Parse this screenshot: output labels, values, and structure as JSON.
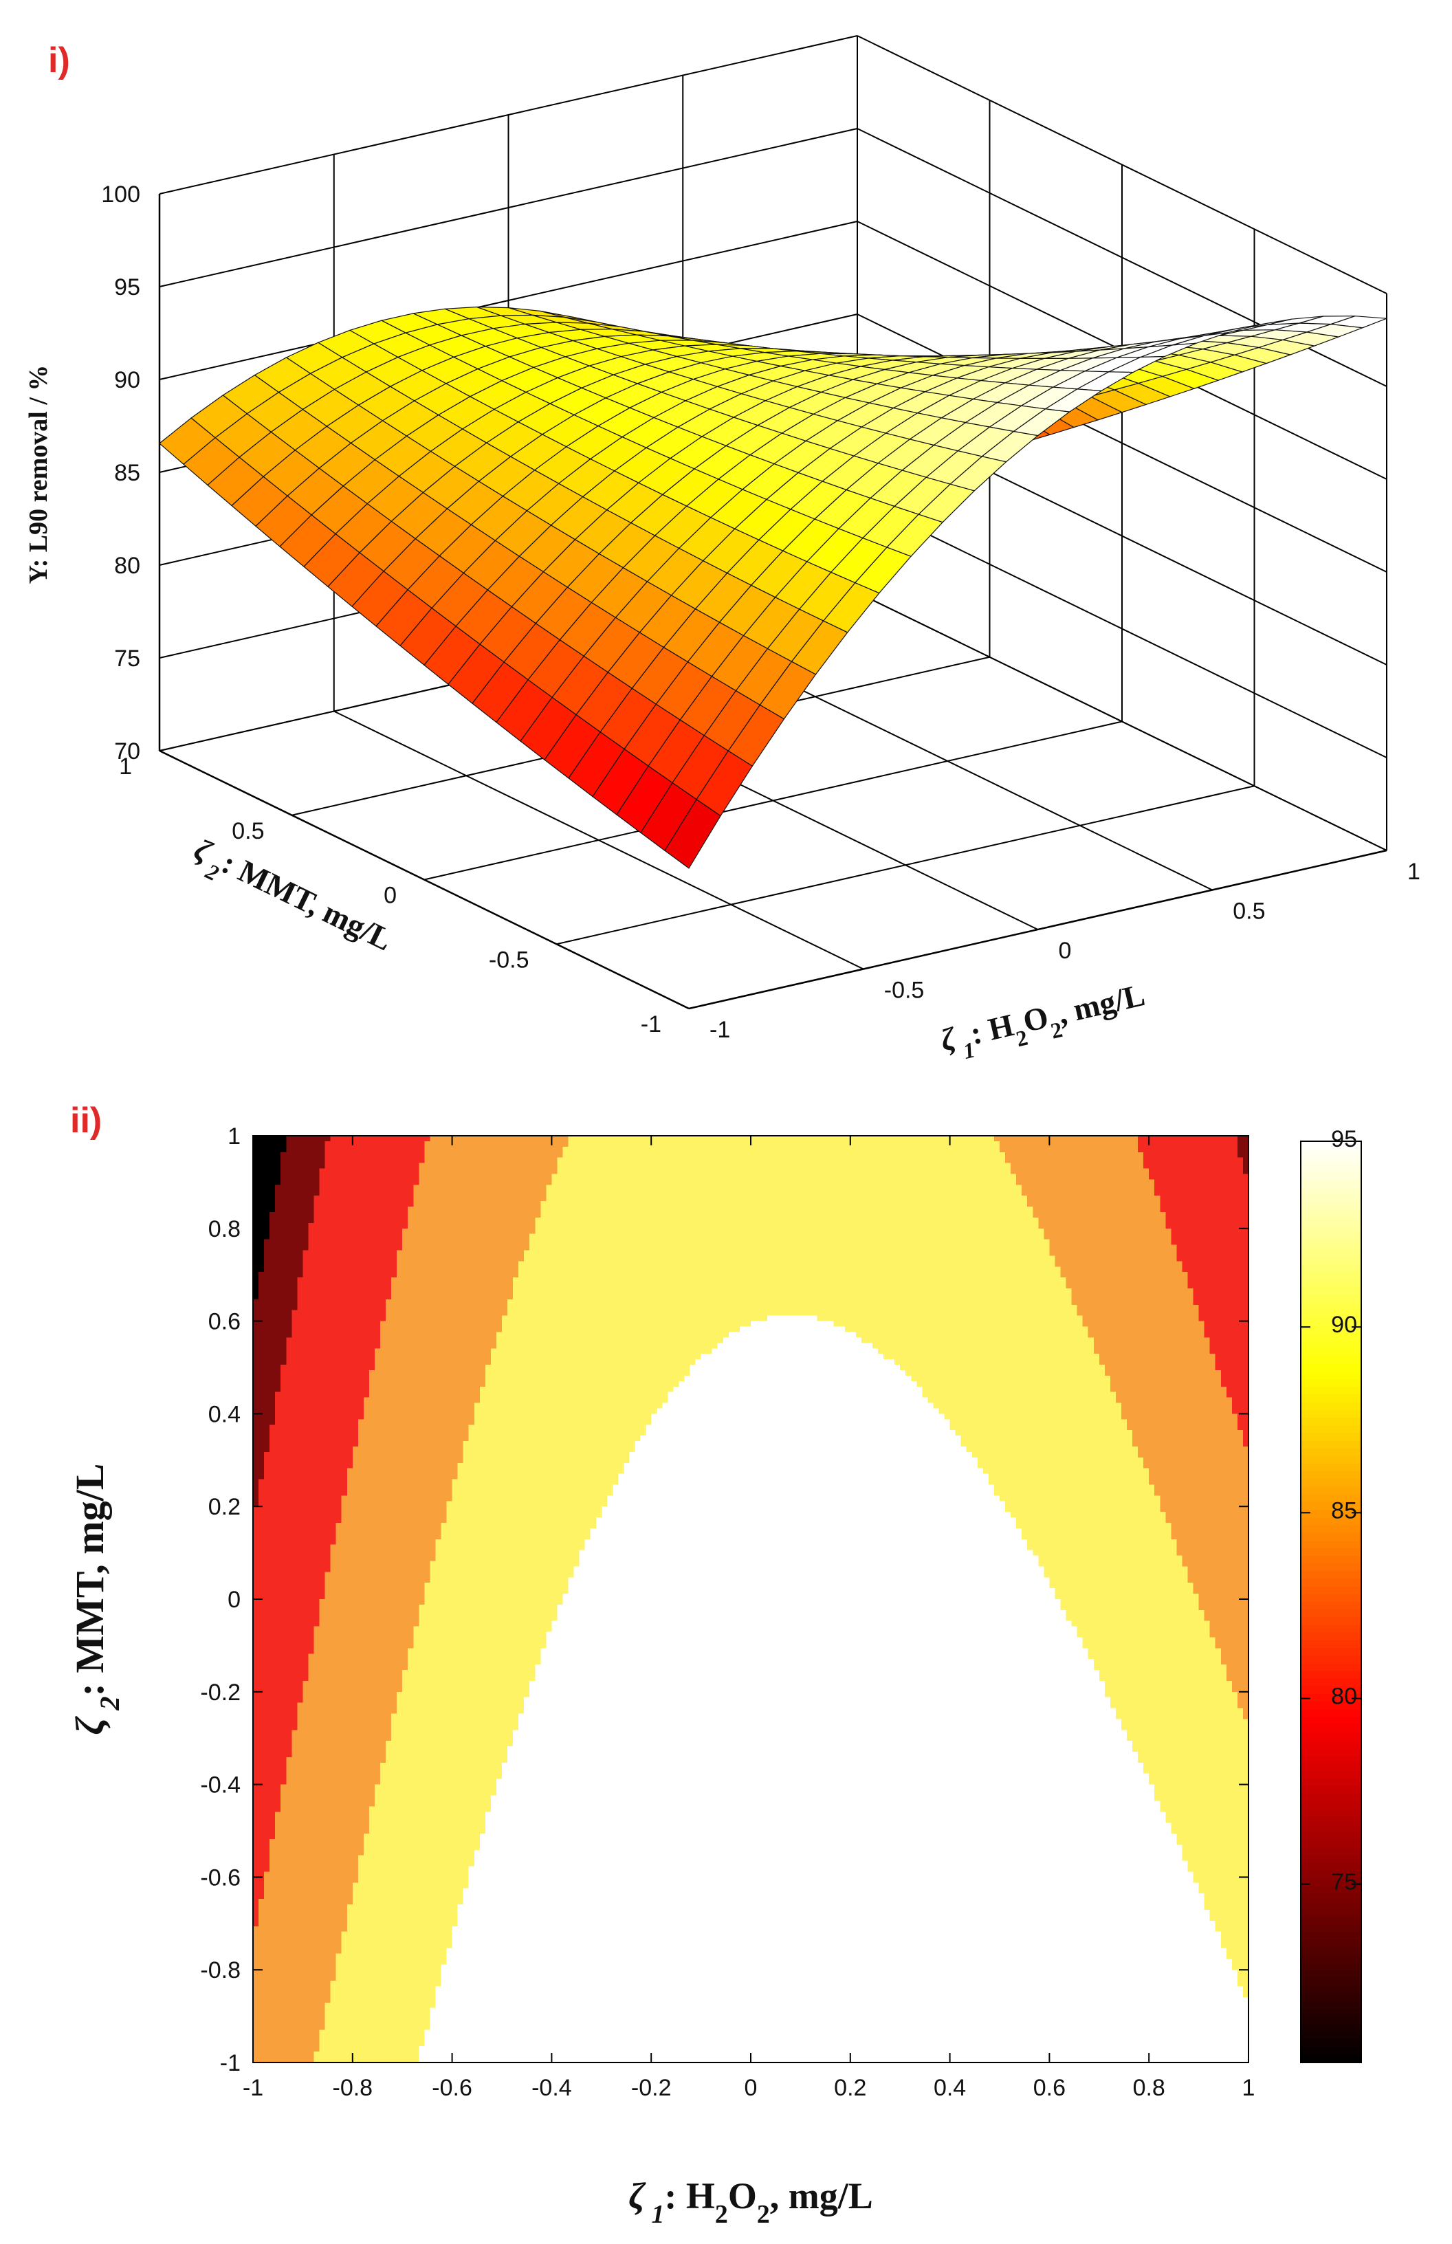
{
  "colors": {
    "panel_label": "#e02a2a",
    "axis": "#000000",
    "grid": "#222222"
  },
  "panels": [
    {
      "label": "i)"
    },
    {
      "label": "ii)"
    }
  ],
  "chart_data": [
    {
      "type": "surface3d",
      "panel": "i)",
      "zlabel": "Y: L90 removal / %",
      "xlabel_prefix": "ζ",
      "xlabel_sub": "1",
      "xlabel_main": ": H",
      "xlabel_sub2": "2",
      "xlabel_mid": "O",
      "xlabel_sub3": "2",
      "xlabel_end": ", mg/L",
      "ylabel_prefix": "ζ",
      "ylabel_sub": "2",
      "ylabel_main": ": MMT, mg/L",
      "x_ticks": [
        "-1",
        "-0.5",
        "0",
        "0.5",
        "1"
      ],
      "y_ticks": [
        "-1",
        "-0.5",
        "0",
        "0.5",
        "1"
      ],
      "z_ticks": [
        "70",
        "75",
        "80",
        "85",
        "90",
        "95",
        "100"
      ],
      "xlim": [
        -1,
        1
      ],
      "ylim": [
        -1,
        1
      ],
      "zlim": [
        70,
        100
      ],
      "model": "Y = 92.8 - 8.5*(z1-0.15)^2 - 3.5*z2 - 8*z1*z2 + 0.5*z2^2",
      "colormap": "hot",
      "color_range": [
        70,
        95
      ]
    },
    {
      "type": "contour",
      "panel": "ii)",
      "xlabel_prefix": "ζ",
      "xlabel_sub": "1",
      "xlabel_main": ": H",
      "xlabel_sub2": "2",
      "xlabel_mid": "O",
      "xlabel_sub3": "2",
      "xlabel_end": ", mg/L",
      "ylabel_prefix": "ζ",
      "ylabel_sub": "2",
      "ylabel_main": ": MMT, mg/L",
      "x_ticks": [
        "-1",
        "-0.8",
        "-0.6",
        "-0.4",
        "-0.2",
        "0",
        "0.2",
        "0.4",
        "0.6",
        "0.8",
        "1"
      ],
      "y_ticks": [
        "-1",
        "-0.8",
        "-0.6",
        "-0.4",
        "-0.2",
        "0",
        "0.2",
        "0.4",
        "0.6",
        "0.8",
        "1"
      ],
      "xlim": [
        -1,
        1
      ],
      "ylim": [
        -1,
        1
      ],
      "levels": [
        70,
        75,
        80,
        85,
        90,
        95
      ],
      "level_colors": [
        "#000000",
        "#7d0b0b",
        "#f42a22",
        "#f7a03c",
        "#fdf364",
        "#ffffff"
      ],
      "colorbar_ticks": [
        "75",
        "80",
        "85",
        "90",
        "95"
      ],
      "colorbar_range": [
        70.2,
        95
      ]
    }
  ]
}
